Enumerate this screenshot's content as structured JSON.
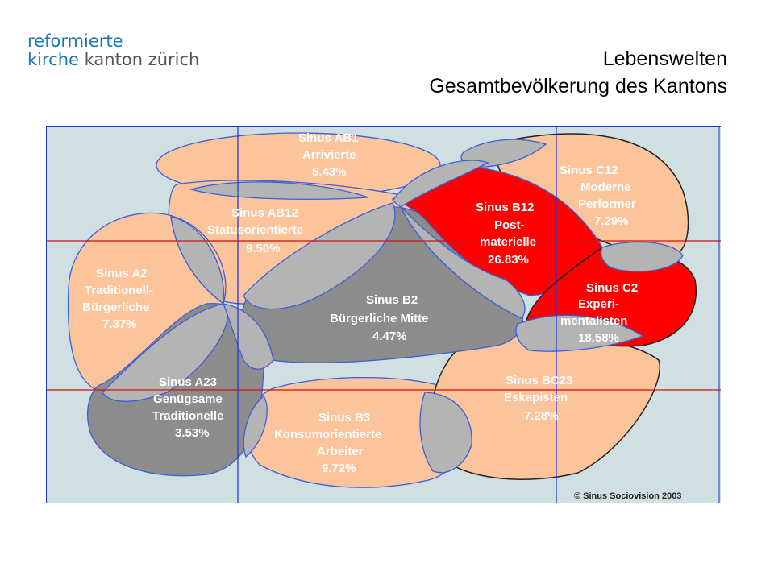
{
  "logo": {
    "line1": "reformierte",
    "line2_a": "kirche",
    "line2_b": "kanton zürich"
  },
  "title": {
    "line1": "Lebenswelten",
    "line2": "Gesamtbevölkerung des Kantons"
  },
  "colors": {
    "background": "#cfdfe2",
    "peach": "#fbc49a",
    "grey_dark": "#8c8c8c",
    "grey_overlap": "#b4b4b4",
    "red": "#ff0000",
    "grid": "#d01010",
    "outline": "#3a5fd9"
  },
  "milieus": [
    {
      "l1": "Sinus  AB1",
      "l2": "Arrivierte",
      "l3": "5.43%",
      "l4": ""
    },
    {
      "l1": "Sinus  AB12",
      "l2": "Statusorientierte",
      "l3": "9.50%",
      "l4": ""
    },
    {
      "l1": "Sinus  A2",
      "l2": "Traditionell-",
      "l3": "Bürgerliche",
      "l4": "7.37%"
    },
    {
      "l1": "Sinus  B2",
      "l2": "Bürgerliche Mitte",
      "l3": "4.47%",
      "l4": ""
    },
    {
      "l1": "Sinus  B12",
      "l2": "Post-",
      "l3": "materielle",
      "l4": "26.83%"
    },
    {
      "l1": "Sinus  C12",
      "l2": "Moderne",
      "l3": "Performer",
      "l4": "7.29%"
    },
    {
      "l1": "Sinus  C2",
      "l2": "Experi-",
      "l3": "mentalisten",
      "l4": "18.58%"
    },
    {
      "l1": "Sinus  A23",
      "l2": "Genügsame",
      "l3": "Traditionelle",
      "l4": "3.53%"
    },
    {
      "l1": "Sinus  B3",
      "l2": "Konsumorientierte",
      "l3": "Arbeiter",
      "l4": "9.72%"
    },
    {
      "l1": "Sinus  BC23",
      "l2": "Eskapisten",
      "l3": "7.28%",
      "l4": ""
    }
  ],
  "copyright": "© Sinus Sociovision 2003"
}
